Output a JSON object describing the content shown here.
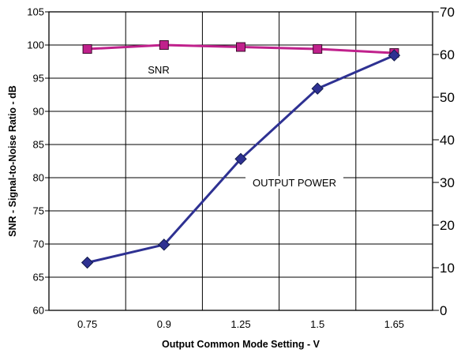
{
  "chart_data": {
    "type": "line",
    "x_categories": [
      "0.75",
      "0.9",
      "1.25",
      "1.5",
      "1.65"
    ],
    "xlabel": "Output Common Mode Setting - V",
    "y_left": {
      "label": "SNR - Signal-to-Noise Ratio - dB",
      "range": [
        60,
        105
      ],
      "ticks": [
        "60",
        "65",
        "70",
        "75",
        "80",
        "85",
        "90",
        "95",
        "100",
        "105"
      ]
    },
    "y_right": {
      "label": "",
      "range": [
        0,
        70
      ],
      "ticks": [
        "0",
        "10",
        "20",
        "30",
        "40",
        "50",
        "60",
        "70"
      ]
    },
    "grid": true,
    "series": [
      {
        "name": "SNR",
        "axis": "left",
        "color": "#c0218c",
        "marker": "square",
        "values": [
          99.4,
          100.0,
          99.7,
          99.4,
          98.8
        ]
      },
      {
        "name": "OUTPUT POWER",
        "axis": "right",
        "color": "#2e3192",
        "marker": "diamond",
        "values": [
          11.2,
          15.4,
          35.5,
          52.0,
          59.8
        ]
      }
    ],
    "annotations": [
      {
        "text": "SNR",
        "series": "SNR"
      },
      {
        "text": "OUTPUT POWER",
        "series": "OUTPUT POWER"
      }
    ]
  }
}
